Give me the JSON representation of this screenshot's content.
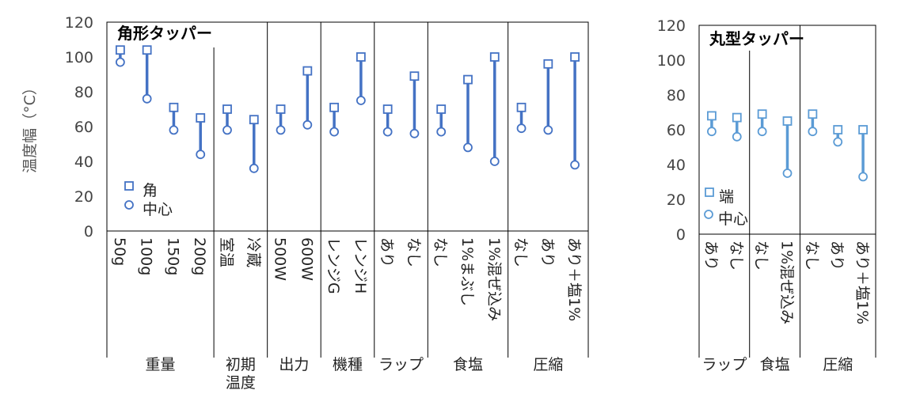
{
  "chart_data": [
    {
      "type": "range",
      "title": "角形タッパー",
      "ylabel": "温度幅（°C）",
      "ylim": [
        0,
        120
      ],
      "yticks": [
        0,
        20,
        40,
        60,
        80,
        100,
        120
      ],
      "legend": [
        {
          "marker": "square",
          "label": "角"
        },
        {
          "marker": "circle",
          "label": "中心"
        }
      ],
      "groups": [
        {
          "name": [
            "重量"
          ],
          "categories": [
            "50g",
            "100g",
            "150g",
            "200g"
          ]
        },
        {
          "name": [
            "初期",
            "温度"
          ],
          "categories": [
            "室温",
            "冷蔵"
          ]
        },
        {
          "name": [
            "出力"
          ],
          "categories": [
            "500W",
            "600W"
          ]
        },
        {
          "name": [
            "機種"
          ],
          "categories": [
            "レンジG",
            "レンジH"
          ]
        },
        {
          "name": [
            "ラップ"
          ],
          "categories": [
            "あり",
            "なし"
          ]
        },
        {
          "name": [
            "食塩"
          ],
          "categories": [
            "なし",
            "1%まぶし",
            "1%混ぜ込み"
          ]
        },
        {
          "name": [
            "圧縮"
          ],
          "categories": [
            "なし",
            "あり",
            "あり＋塩1%"
          ]
        }
      ],
      "series": [
        {
          "name": "角",
          "marker": "square",
          "values": [
            104,
            104,
            71,
            65,
            70,
            64,
            70,
            92,
            71,
            100,
            70,
            89,
            70,
            87,
            100,
            71,
            96,
            100
          ]
        },
        {
          "name": "中心",
          "marker": "circle",
          "values": [
            97,
            76,
            58,
            44,
            58,
            36,
            58,
            61,
            57,
            75,
            57,
            56,
            57,
            48,
            40,
            59,
            58,
            38
          ]
        }
      ],
      "color": "#4472c4"
    },
    {
      "type": "range",
      "title": "丸型タッパー",
      "ylim": [
        0,
        120
      ],
      "yticks": [
        0,
        20,
        40,
        60,
        80,
        100,
        120
      ],
      "legend": [
        {
          "marker": "square",
          "label": "端"
        },
        {
          "marker": "circle",
          "label": "中心"
        }
      ],
      "groups": [
        {
          "name": [
            "ラップ"
          ],
          "categories": [
            "あり",
            "なし"
          ]
        },
        {
          "name": [
            "食塩"
          ],
          "categories": [
            "なし",
            "1%混ぜ込み"
          ]
        },
        {
          "name": [
            "圧縮"
          ],
          "categories": [
            "なし",
            "あり",
            "あり＋塩1%"
          ]
        }
      ],
      "series": [
        {
          "name": "端",
          "marker": "square",
          "values": [
            68,
            67,
            69,
            65,
            69,
            60,
            60
          ]
        },
        {
          "name": "中心",
          "marker": "circle",
          "values": [
            59,
            56,
            59,
            35,
            59,
            53,
            33
          ]
        }
      ],
      "color": "#5b9bd5"
    }
  ]
}
